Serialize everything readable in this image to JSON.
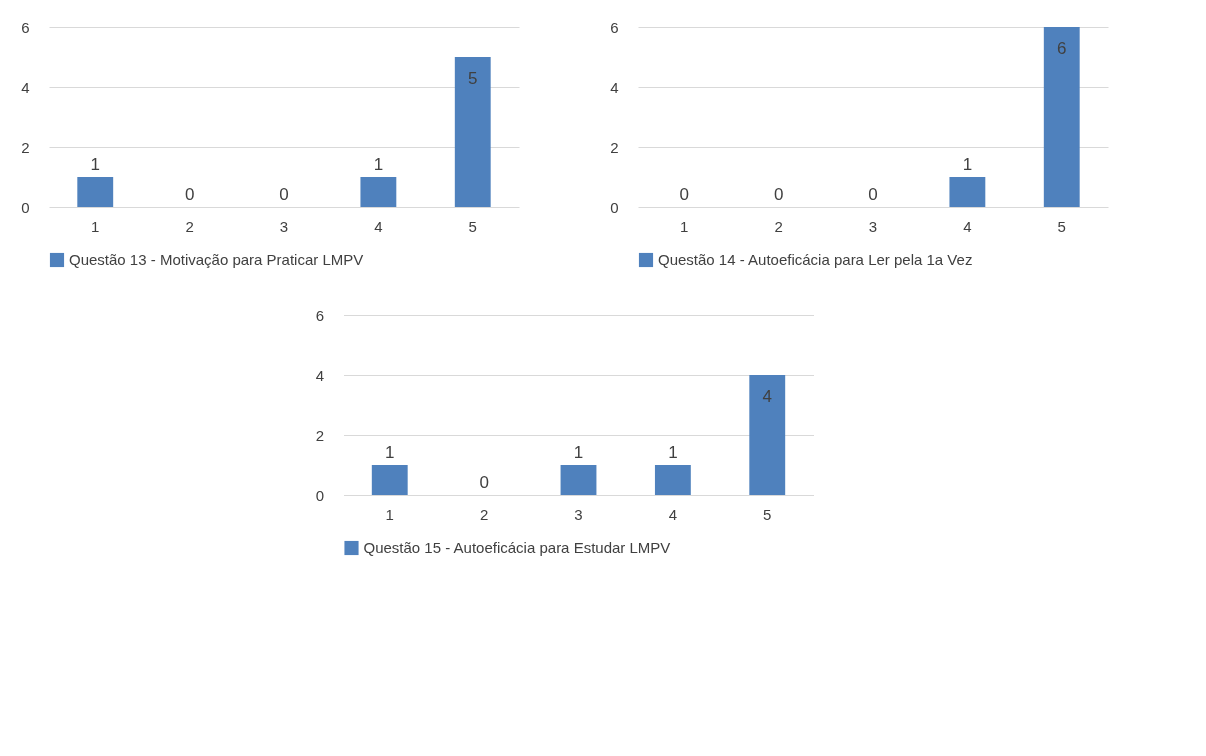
{
  "chart_data": [
    {
      "type": "bar",
      "categories": [
        "1",
        "2",
        "3",
        "4",
        "5"
      ],
      "series": [
        {
          "name": "Questão 13 - Motivação para Praticar LMPV",
          "color": "#4f81bd",
          "values": [
            1,
            0,
            0,
            1,
            5
          ]
        }
      ],
      "ylim": [
        0,
        6
      ],
      "yticks": [
        0,
        2,
        4,
        6
      ],
      "grid": "y",
      "legend": "bottom",
      "data_labels": true
    },
    {
      "type": "bar",
      "categories": [
        "1",
        "2",
        "3",
        "4",
        "5"
      ],
      "series": [
        {
          "name": "Questão 14 - Autoeficácia para Ler pela 1a Vez",
          "color": "#4f81bd",
          "values": [
            0,
            0,
            0,
            1,
            6
          ]
        }
      ],
      "ylim": [
        0,
        6
      ],
      "yticks": [
        0,
        2,
        4,
        6
      ],
      "grid": "y",
      "legend": "bottom",
      "data_labels": true
    },
    {
      "type": "bar",
      "categories": [
        "1",
        "2",
        "3",
        "4",
        "5"
      ],
      "series": [
        {
          "name": "Questão 15 - Autoeficácia para Estudar LMPV",
          "color": "#4f81bd",
          "values": [
            1,
            0,
            1,
            1,
            4
          ]
        }
      ],
      "ylim": [
        0,
        6
      ],
      "yticks": [
        0,
        2,
        4,
        6
      ],
      "grid": "y",
      "legend": "bottom",
      "data_labels": true
    }
  ]
}
